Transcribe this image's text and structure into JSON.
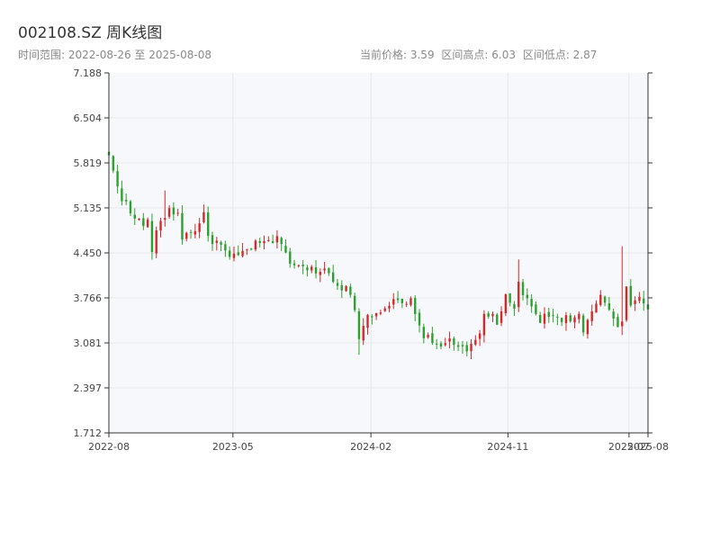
{
  "header": {
    "title": "002108.SZ 周K线图",
    "range_label": "时间范围: 2022-08-26 至 2025-08-08",
    "current_price": "当前价格: 3.59",
    "high": "区间高点: 6.03",
    "low": "区间低点: 2.87"
  },
  "colors": {
    "up": "#d62728",
    "down": "#2ca02c",
    "plot_bg": "#f7f8fb",
    "grid": "#e5e7ec"
  },
  "chart_data": {
    "type": "candlestick",
    "title": "002108.SZ 周K线图",
    "xlabel": "",
    "ylabel": "",
    "x_range": [
      "2022-08-26",
      "2025-08-08"
    ],
    "ylim": [
      1.712,
      7.188
    ],
    "y_ticks": [
      "1.712",
      "2.397",
      "3.081",
      "3.766",
      "4.450",
      "5.135",
      "5.819",
      "6.504",
      "7.188"
    ],
    "x_ticks": [
      {
        "date": "2022-08-26",
        "label": "2022-08"
      },
      {
        "date": "2023-05-01",
        "label": "2023-05"
      },
      {
        "date": "2024-02-01",
        "label": "2024-02"
      },
      {
        "date": "2024-11-01",
        "label": "2024-11"
      },
      {
        "date": "2025-07-01",
        "label": "2025-07"
      },
      {
        "date": "2025-08-08",
        "label": "2025-08"
      }
    ],
    "grid": true,
    "anchors": [
      [
        0,
        5.9
      ],
      [
        3,
        5.3
      ],
      [
        6,
        4.95
      ],
      [
        9,
        4.9
      ],
      [
        10,
        4.5
      ],
      [
        12,
        4.95
      ],
      [
        14,
        5.1
      ],
      [
        16,
        5.05
      ],
      [
        17,
        4.7
      ],
      [
        19,
        4.75
      ],
      [
        22,
        5.0
      ],
      [
        23,
        4.7
      ],
      [
        26,
        4.55
      ],
      [
        28,
        4.35
      ],
      [
        30,
        4.4
      ],
      [
        33,
        4.55
      ],
      [
        36,
        4.6
      ],
      [
        40,
        4.65
      ],
      [
        42,
        4.3
      ],
      [
        45,
        4.2
      ],
      [
        50,
        4.2
      ],
      [
        53,
        4.0
      ],
      [
        55,
        3.9
      ],
      [
        57,
        3.6
      ],
      [
        58,
        3.2
      ],
      [
        60,
        3.5
      ],
      [
        63,
        3.6
      ],
      [
        66,
        3.7
      ],
      [
        68,
        3.65
      ],
      [
        70,
        3.7
      ],
      [
        72,
        3.3
      ],
      [
        75,
        3.05
      ],
      [
        78,
        3.1
      ],
      [
        81,
        3.05
      ],
      [
        84,
        3.0
      ],
      [
        86,
        3.2
      ],
      [
        87,
        3.5
      ],
      [
        89,
        3.5
      ],
      [
        90,
        3.4
      ],
      [
        92,
        3.75
      ],
      [
        94,
        3.55
      ],
      [
        95,
        4.0
      ],
      [
        97,
        3.7
      ],
      [
        100,
        3.45
      ],
      [
        103,
        3.5
      ],
      [
        106,
        3.45
      ],
      [
        109,
        3.5
      ],
      [
        110,
        3.2
      ],
      [
        112,
        3.55
      ],
      [
        114,
        3.75
      ],
      [
        116,
        3.6
      ],
      [
        118,
        3.35
      ],
      [
        119,
        3.4
      ],
      [
        120,
        4.0
      ],
      [
        121,
        3.7
      ],
      [
        123,
        3.75
      ],
      [
        125,
        3.6
      ]
    ],
    "spikes": [
      {
        "week": 119,
        "high": 4.55,
        "low": 3.2
      },
      {
        "week": 95,
        "high": 4.35,
        "low": 3.55
      },
      {
        "week": 58,
        "high": 3.5,
        "low": 2.9
      },
      {
        "week": 13,
        "high": 5.4,
        "low": 4.85
      }
    ],
    "series": [
      {
        "name": "",
        "n_weeks": 126,
        "first_close": 5.9,
        "last_close": 3.59,
        "high": 6.03,
        "low": 2.87
      }
    ]
  }
}
